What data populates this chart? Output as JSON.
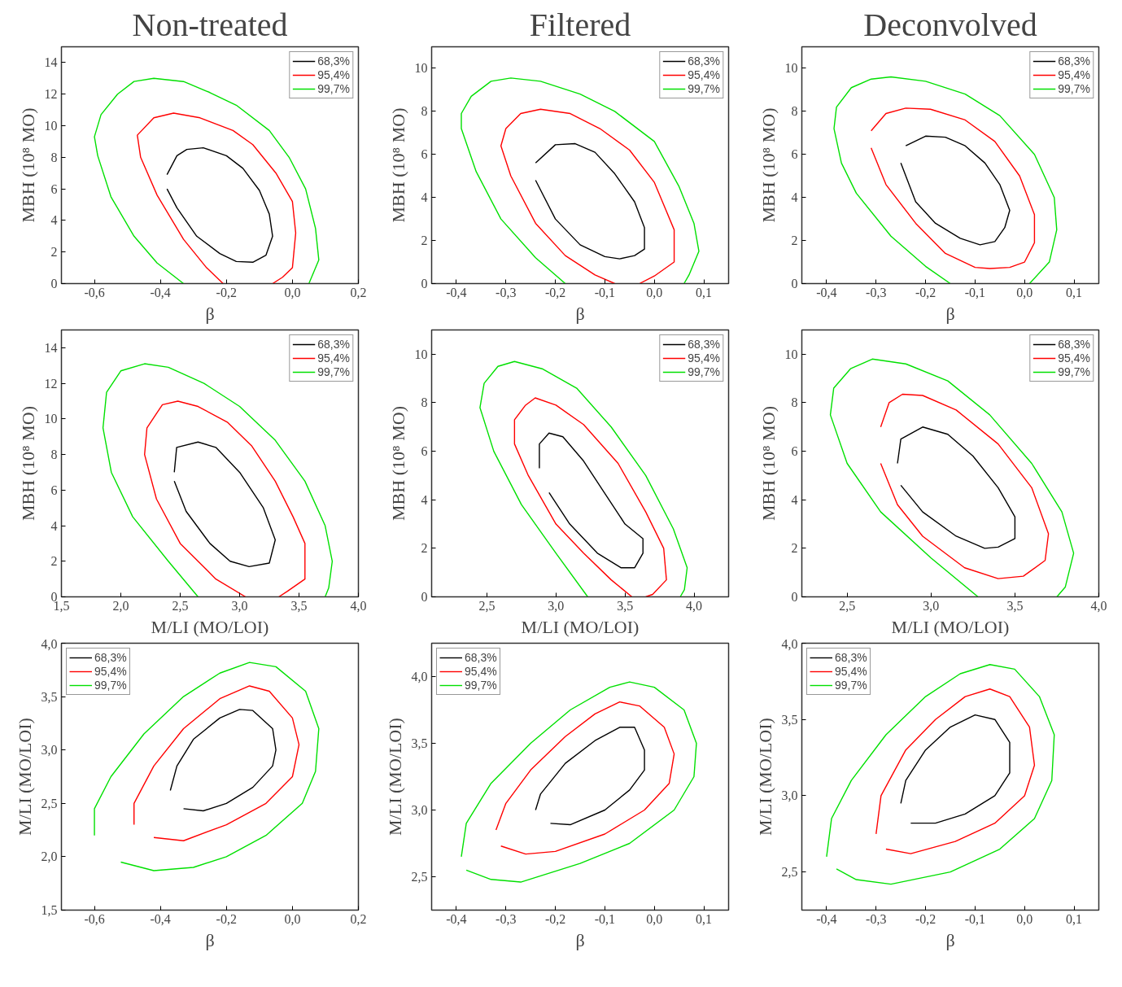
{
  "chart_data": [
    {
      "type": "line",
      "title": "Non-treated",
      "xlabel": "β",
      "ylabel": "MBH (10⁸ MO)",
      "xlim": [
        -0.7,
        0.2
      ],
      "ylim": [
        0,
        15
      ],
      "xticks": [
        {
          "value": -0.6,
          "label": "-0,6"
        },
        {
          "value": -0.4,
          "label": "-0,4"
        },
        {
          "value": -0.2,
          "label": "-0,2"
        },
        {
          "value": 0.0,
          "label": "0,0"
        },
        {
          "value": 0.2,
          "label": "0,2"
        }
      ],
      "yticks": [
        0,
        2,
        4,
        6,
        8,
        10,
        12,
        14
      ],
      "grid": false,
      "legend": "top right",
      "marker": "none",
      "line_style": "solid",
      "series": [
        {
          "name": "68,3%",
          "color": "#000000",
          "x": [
            -0.38,
            -0.35,
            -0.32,
            -0.27,
            -0.2,
            -0.15,
            -0.1,
            -0.07,
            -0.06,
            -0.08,
            -0.12,
            -0.17,
            -0.22,
            -0.29,
            -0.35,
            -0.38,
            -0.38
          ],
          "values": [
            6.9,
            8.1,
            8.5,
            8.6,
            8.1,
            7.3,
            5.9,
            4.4,
            3.0,
            1.8,
            1.35,
            1.4,
            1.9,
            3.0,
            4.8,
            6.0,
            6.9
          ]
        },
        {
          "name": "95,4%",
          "color": "#ff0000",
          "x": [
            -0.21,
            -0.26,
            -0.33,
            -0.41,
            -0.46,
            -0.47,
            -0.42,
            -0.36,
            -0.28,
            -0.18,
            -0.12,
            -0.05,
            0.0,
            0.01,
            0.0,
            -0.03,
            -0.06
          ],
          "values": [
            0,
            1.0,
            2.8,
            5.6,
            8.0,
            9.4,
            10.5,
            10.8,
            10.5,
            9.7,
            8.8,
            7.0,
            5.2,
            3.2,
            1.0,
            0.4,
            0
          ]
        },
        {
          "name": "99,7%",
          "color": "#00e000",
          "x": [
            -0.33,
            -0.41,
            -0.48,
            -0.55,
            -0.59,
            -0.6,
            -0.58,
            -0.53,
            -0.48,
            -0.42,
            -0.33,
            -0.25,
            -0.17,
            -0.07,
            -0.01,
            0.04,
            0.07,
            0.08,
            0.05
          ],
          "values": [
            0,
            1.3,
            3.0,
            5.5,
            8.1,
            9.3,
            10.7,
            12.0,
            12.8,
            13.0,
            12.8,
            12.1,
            11.3,
            9.7,
            8.0,
            6.0,
            3.5,
            1.5,
            0
          ]
        }
      ]
    },
    {
      "type": "line",
      "title": "Filtered",
      "xlabel": "β",
      "ylabel": "MBH (10⁸ MO)",
      "xlim": [
        -0.45,
        0.15
      ],
      "ylim": [
        0,
        11
      ],
      "xticks": [
        {
          "value": -0.4,
          "label": "-0,4"
        },
        {
          "value": -0.3,
          "label": "-0,3"
        },
        {
          "value": -0.2,
          "label": "-0,2"
        },
        {
          "value": -0.1,
          "label": "-0,1"
        },
        {
          "value": 0.0,
          "label": "0,0"
        },
        {
          "value": 0.1,
          "label": "0,1"
        }
      ],
      "yticks": [
        0,
        2,
        4,
        6,
        8,
        10
      ],
      "grid": false,
      "legend": "top right",
      "marker": "none",
      "line_style": "solid",
      "series": [
        {
          "name": "68,3%",
          "color": "#000000",
          "x": [
            -0.24,
            -0.2,
            -0.16,
            -0.12,
            -0.08,
            -0.04,
            -0.02,
            -0.02,
            -0.04,
            -0.07,
            -0.1,
            -0.15,
            -0.2,
            -0.24,
            -0.24
          ],
          "values": [
            5.6,
            6.45,
            6.5,
            6.1,
            5.1,
            3.8,
            2.6,
            1.6,
            1.3,
            1.15,
            1.25,
            1.8,
            3.0,
            4.8,
            5.6
          ]
        },
        {
          "name": "95,4%",
          "color": "#ff0000",
          "x": [
            -0.08,
            -0.12,
            -0.18,
            -0.24,
            -0.29,
            -0.31,
            -0.3,
            -0.27,
            -0.23,
            -0.17,
            -0.11,
            -0.05,
            0.0,
            0.04,
            0.04,
            0.0,
            -0.03
          ],
          "values": [
            0,
            0.4,
            1.3,
            2.8,
            5.0,
            6.4,
            7.2,
            7.9,
            8.1,
            7.9,
            7.2,
            6.2,
            4.7,
            2.5,
            1.0,
            0.35,
            0
          ]
        },
        {
          "name": "99,7%",
          "color": "#00e000",
          "x": [
            -0.18,
            -0.24,
            -0.31,
            -0.36,
            -0.39,
            -0.39,
            -0.37,
            -0.33,
            -0.29,
            -0.23,
            -0.15,
            -0.08,
            0.0,
            0.05,
            0.08,
            0.09,
            0.07,
            0.06
          ],
          "values": [
            0,
            1.2,
            3.0,
            5.2,
            7.2,
            7.9,
            8.7,
            9.4,
            9.55,
            9.4,
            8.8,
            8.0,
            6.6,
            4.5,
            2.8,
            1.5,
            0.4,
            0
          ]
        }
      ]
    },
    {
      "type": "line",
      "title": "Deconvolved",
      "xlabel": "β",
      "ylabel": "MBH (10⁸ MO)",
      "xlim": [
        -0.45,
        0.15
      ],
      "ylim": [
        0,
        11
      ],
      "xticks": [
        {
          "value": -0.4,
          "label": "-0,4"
        },
        {
          "value": -0.3,
          "label": "-0,3"
        },
        {
          "value": -0.2,
          "label": "-0,2"
        },
        {
          "value": -0.1,
          "label": "-0,1"
        },
        {
          "value": 0.0,
          "label": "0,0"
        },
        {
          "value": 0.1,
          "label": "0,1"
        }
      ],
      "yticks": [
        0,
        2,
        4,
        6,
        8,
        10
      ],
      "grid": false,
      "legend": "top right",
      "marker": "none",
      "line_style": "solid",
      "series": [
        {
          "name": "68,3%",
          "color": "#000000",
          "x": [
            -0.24,
            -0.2,
            -0.16,
            -0.12,
            -0.08,
            -0.05,
            -0.03,
            -0.04,
            -0.06,
            -0.09,
            -0.13,
            -0.18,
            -0.22,
            -0.25,
            -0.24
          ],
          "values": [
            6.4,
            6.85,
            6.8,
            6.4,
            5.6,
            4.6,
            3.4,
            2.6,
            1.95,
            1.8,
            2.1,
            2.8,
            3.8,
            5.6,
            6.4
          ]
        },
        {
          "name": "95,4%",
          "color": "#ff0000",
          "x": [
            -0.31,
            -0.28,
            -0.24,
            -0.19,
            -0.12,
            -0.06,
            -0.01,
            0.02,
            0.02,
            0.0,
            -0.03,
            -0.07,
            -0.1,
            -0.16,
            -0.22,
            -0.28,
            -0.31,
            -0.31
          ],
          "values": [
            7.1,
            7.9,
            8.15,
            8.1,
            7.6,
            6.6,
            5.0,
            3.2,
            1.9,
            1.0,
            0.75,
            0.7,
            0.75,
            1.4,
            2.8,
            4.6,
            6.3,
            7.1
          ]
        },
        {
          "name": "99,7%",
          "color": "#00e000",
          "x": [
            -0.15,
            -0.2,
            -0.27,
            -0.34,
            -0.37,
            -0.385,
            -0.38,
            -0.35,
            -0.31,
            -0.27,
            -0.2,
            -0.12,
            -0.05,
            0.02,
            0.06,
            0.065,
            0.05,
            0.01
          ],
          "values": [
            0,
            0.8,
            2.2,
            4.2,
            5.6,
            7.2,
            8.2,
            9.1,
            9.5,
            9.6,
            9.4,
            8.8,
            7.8,
            6.0,
            4.0,
            2.5,
            1.0,
            0
          ]
        }
      ]
    },
    {
      "type": "line",
      "xlabel": "M/LI (MO/LOI)",
      "ylabel": "MBH (10⁸ MO)",
      "xlim": [
        1.5,
        4.0
      ],
      "ylim": [
        0,
        15
      ],
      "xticks": [
        {
          "value": 1.5,
          "label": "1,5"
        },
        {
          "value": 2.0,
          "label": "2,0"
        },
        {
          "value": 2.5,
          "label": "2,5"
        },
        {
          "value": 3.0,
          "label": "3,0"
        },
        {
          "value": 3.5,
          "label": "3,5"
        },
        {
          "value": 4.0,
          "label": "4,0"
        }
      ],
      "yticks": [
        0,
        2,
        4,
        6,
        8,
        10,
        12,
        14
      ],
      "grid": false,
      "legend": "top right",
      "marker": "none",
      "line_style": "solid",
      "series": [
        {
          "name": "68,3%",
          "color": "#000000",
          "x": [
            2.45,
            2.47,
            2.65,
            2.8,
            3.0,
            3.2,
            3.3,
            3.25,
            3.08,
            2.92,
            2.75,
            2.55,
            2.45,
            2.45
          ],
          "values": [
            7.0,
            8.4,
            8.7,
            8.4,
            7.0,
            5.0,
            3.2,
            1.9,
            1.7,
            2.0,
            3.0,
            4.8,
            6.5,
            7.0
          ]
        },
        {
          "name": "95,4%",
          "color": "#ff0000",
          "x": [
            3.05,
            2.8,
            2.5,
            2.3,
            2.2,
            2.22,
            2.35,
            2.48,
            2.65,
            2.9,
            3.1,
            3.3,
            3.45,
            3.55,
            3.55,
            3.4,
            3.33
          ],
          "values": [
            0,
            1.0,
            3.0,
            5.5,
            8.0,
            9.5,
            10.8,
            11.0,
            10.7,
            9.8,
            8.5,
            6.5,
            4.5,
            3.0,
            1.0,
            0.3,
            0
          ]
        },
        {
          "name": "99,7%",
          "color": "#00e000",
          "x": [
            2.65,
            2.4,
            2.1,
            1.92,
            1.85,
            1.88,
            2.0,
            2.2,
            2.4,
            2.7,
            3.0,
            3.3,
            3.55,
            3.72,
            3.78,
            3.75,
            3.72
          ],
          "values": [
            0,
            2.0,
            4.5,
            7.0,
            9.5,
            11.5,
            12.7,
            13.1,
            12.9,
            12.0,
            10.7,
            8.8,
            6.5,
            4.0,
            2.0,
            0.5,
            0
          ]
        }
      ]
    },
    {
      "type": "line",
      "xlabel": "M/LI (MO/LOI)",
      "ylabel": "MBH (10⁸ MO)",
      "xlim": [
        2.1,
        4.25
      ],
      "ylim": [
        0,
        11
      ],
      "xticks": [
        {
          "value": 2.5,
          "label": "2,5"
        },
        {
          "value": 3.0,
          "label": "3,0"
        },
        {
          "value": 3.5,
          "label": "3,5"
        },
        {
          "value": 4.0,
          "label": "4,0"
        }
      ],
      "yticks": [
        0,
        2,
        4,
        6,
        8,
        10
      ],
      "grid": false,
      "legend": "top right",
      "marker": "none",
      "line_style": "solid",
      "series": [
        {
          "name": "68,3%",
          "color": "#000000",
          "x": [
            2.88,
            2.88,
            2.95,
            3.05,
            3.2,
            3.35,
            3.5,
            3.63,
            3.63,
            3.57,
            3.47,
            3.3,
            3.1,
            2.95,
            2.88
          ],
          "values": [
            5.3,
            6.3,
            6.75,
            6.6,
            5.6,
            4.3,
            3.0,
            2.4,
            1.8,
            1.2,
            1.2,
            1.8,
            3.0,
            4.3,
            5.3
          ]
        },
        {
          "name": "95,4%",
          "color": "#ff0000",
          "x": [
            3.55,
            3.4,
            3.2,
            3.0,
            2.8,
            2.7,
            2.7,
            2.78,
            2.85,
            3.0,
            3.2,
            3.45,
            3.65,
            3.78,
            3.8,
            3.7,
            3.65
          ],
          "values": [
            0,
            0.7,
            1.8,
            3.0,
            5.0,
            6.3,
            7.3,
            7.9,
            8.2,
            7.9,
            7.1,
            5.5,
            3.5,
            2.0,
            0.7,
            0.1,
            0
          ]
        },
        {
          "name": "99,7%",
          "color": "#00e000",
          "x": [
            3.23,
            3.0,
            2.75,
            2.55,
            2.45,
            2.48,
            2.58,
            2.7,
            2.9,
            3.15,
            3.4,
            3.65,
            3.85,
            3.95,
            3.93,
            3.9
          ],
          "values": [
            0,
            1.8,
            3.8,
            6.0,
            7.8,
            8.8,
            9.5,
            9.7,
            9.4,
            8.6,
            7.0,
            5.0,
            2.8,
            1.2,
            0.3,
            0
          ]
        }
      ]
    },
    {
      "type": "line",
      "xlabel": "M/LI (MO/LOI)",
      "ylabel": "MBH (10⁸ MO)",
      "xlim": [
        2.23,
        4.0
      ],
      "ylim": [
        0,
        11
      ],
      "xticks": [
        {
          "value": 2.5,
          "label": "2,5"
        },
        {
          "value": 3.0,
          "label": "3,0"
        },
        {
          "value": 3.5,
          "label": "3,5"
        },
        {
          "value": 4.0,
          "label": "4,0"
        }
      ],
      "yticks": [
        0,
        2,
        4,
        6,
        8,
        10
      ],
      "grid": false,
      "legend": "top right",
      "marker": "none",
      "line_style": "solid",
      "series": [
        {
          "name": "68,3%",
          "color": "#000000",
          "x": [
            2.8,
            2.82,
            2.95,
            3.1,
            3.25,
            3.4,
            3.5,
            3.5,
            3.4,
            3.32,
            3.15,
            2.95,
            2.82,
            2.8
          ],
          "values": [
            5.5,
            6.5,
            7.0,
            6.7,
            5.8,
            4.5,
            3.3,
            2.4,
            2.05,
            2.0,
            2.5,
            3.5,
            4.6,
            5.5
          ]
        },
        {
          "name": "95,4%",
          "color": "#ff0000",
          "x": [
            2.7,
            2.75,
            2.83,
            2.95,
            3.15,
            3.4,
            3.6,
            3.7,
            3.68,
            3.55,
            3.4,
            3.2,
            2.95,
            2.8,
            2.7,
            2.7
          ],
          "values": [
            7.0,
            8.0,
            8.35,
            8.3,
            7.7,
            6.3,
            4.5,
            2.6,
            1.5,
            0.85,
            0.75,
            1.2,
            2.5,
            3.8,
            5.5,
            7.0
          ]
        },
        {
          "name": "99,7%",
          "color": "#00e000",
          "x": [
            3.28,
            3.0,
            2.7,
            2.5,
            2.4,
            2.42,
            2.52,
            2.65,
            2.85,
            3.1,
            3.35,
            3.6,
            3.78,
            3.85,
            3.8,
            3.75
          ],
          "values": [
            0,
            1.6,
            3.5,
            5.5,
            7.5,
            8.6,
            9.4,
            9.8,
            9.6,
            8.9,
            7.5,
            5.5,
            3.5,
            1.8,
            0.4,
            0
          ]
        }
      ]
    },
    {
      "type": "line",
      "xlabel": "β",
      "ylabel": "M/LI (MO/LOI)",
      "xlim": [
        -0.7,
        0.2
      ],
      "ylim": [
        1.5,
        4.0
      ],
      "xticks": [
        {
          "value": -0.6,
          "label": "-0,6"
        },
        {
          "value": -0.4,
          "label": "-0,4"
        },
        {
          "value": -0.2,
          "label": "-0,2"
        },
        {
          "value": 0.0,
          "label": "0,0"
        },
        {
          "value": 0.2,
          "label": "0,2"
        }
      ],
      "yticks": [
        {
          "value": 1.5,
          "label": "1,5"
        },
        {
          "value": 2.0,
          "label": "2,0"
        },
        {
          "value": 2.5,
          "label": "2,5"
        },
        {
          "value": 3.0,
          "label": "3,0"
        },
        {
          "value": 3.5,
          "label": "3,5"
        },
        {
          "value": 4.0,
          "label": "4,0"
        }
      ],
      "grid": false,
      "legend": "top left",
      "marker": "none",
      "line_style": "solid",
      "series": [
        {
          "name": "68,3%",
          "color": "#000000",
          "x": [
            -0.37,
            -0.35,
            -0.3,
            -0.22,
            -0.16,
            -0.12,
            -0.06,
            -0.05,
            -0.06,
            -0.12,
            -0.2,
            -0.27,
            -0.33,
            -0.37
          ],
          "values": [
            2.62,
            2.85,
            3.1,
            3.3,
            3.38,
            3.37,
            3.2,
            3.0,
            2.85,
            2.65,
            2.5,
            2.43,
            2.45,
            2.62
          ]
        },
        {
          "name": "95,4%",
          "color": "#ff0000",
          "x": [
            -0.48,
            -0.48,
            -0.42,
            -0.33,
            -0.22,
            -0.13,
            -0.07,
            0.0,
            0.02,
            0.0,
            -0.08,
            -0.2,
            -0.33,
            -0.42,
            -0.48
          ],
          "values": [
            2.3,
            2.5,
            2.85,
            3.2,
            3.48,
            3.6,
            3.55,
            3.3,
            3.05,
            2.75,
            2.5,
            2.3,
            2.15,
            2.18,
            2.3
          ]
        },
        {
          "name": "99,7%",
          "color": "#00e000",
          "x": [
            -0.6,
            -0.6,
            -0.55,
            -0.45,
            -0.33,
            -0.22,
            -0.13,
            -0.05,
            0.04,
            0.08,
            0.07,
            0.03,
            -0.08,
            -0.2,
            -0.3,
            -0.42,
            -0.52,
            -0.6
          ],
          "values": [
            2.2,
            2.45,
            2.75,
            3.15,
            3.5,
            3.72,
            3.82,
            3.78,
            3.55,
            3.2,
            2.8,
            2.5,
            2.2,
            2.0,
            1.9,
            1.87,
            1.95,
            2.2
          ]
        }
      ]
    },
    {
      "type": "line",
      "xlabel": "β",
      "ylabel": "M/LI (MO/LOI)",
      "xlim": [
        -0.45,
        0.15
      ],
      "ylim": [
        2.25,
        4.25
      ],
      "xticks": [
        {
          "value": -0.4,
          "label": "-0,4"
        },
        {
          "value": -0.3,
          "label": "-0,3"
        },
        {
          "value": -0.2,
          "label": "-0,2"
        },
        {
          "value": -0.1,
          "label": "-0,1"
        },
        {
          "value": 0.0,
          "label": "0,0"
        },
        {
          "value": 0.1,
          "label": "0,1"
        }
      ],
      "yticks": [
        {
          "value": 2.5,
          "label": "2,5"
        },
        {
          "value": 3.0,
          "label": "3,0"
        },
        {
          "value": 3.5,
          "label": "3,5"
        },
        {
          "value": 4.0,
          "label": "4,0"
        }
      ],
      "grid": false,
      "legend": "top left",
      "marker": "none",
      "line_style": "solid",
      "series": [
        {
          "name": "68,3%",
          "color": "#000000",
          "x": [
            -0.24,
            -0.23,
            -0.18,
            -0.12,
            -0.07,
            -0.04,
            -0.02,
            -0.02,
            -0.05,
            -0.1,
            -0.17,
            -0.21,
            -0.24
          ],
          "values": [
            3.0,
            3.12,
            3.35,
            3.52,
            3.62,
            3.62,
            3.45,
            3.3,
            3.15,
            3.0,
            2.89,
            2.9,
            3.0
          ]
        },
        {
          "name": "95,4%",
          "color": "#ff0000",
          "x": [
            -0.32,
            -0.3,
            -0.25,
            -0.18,
            -0.12,
            -0.07,
            -0.03,
            0.02,
            0.04,
            0.03,
            -0.02,
            -0.1,
            -0.2,
            -0.26,
            -0.31,
            -0.32
          ],
          "values": [
            2.85,
            3.05,
            3.3,
            3.55,
            3.72,
            3.81,
            3.78,
            3.62,
            3.42,
            3.2,
            3.0,
            2.82,
            2.69,
            2.67,
            2.73,
            2.85
          ]
        },
        {
          "name": "99,7%",
          "color": "#00e000",
          "x": [
            -0.39,
            -0.38,
            -0.33,
            -0.25,
            -0.17,
            -0.09,
            -0.05,
            0.0,
            0.06,
            0.085,
            0.08,
            0.04,
            -0.05,
            -0.15,
            -0.27,
            -0.33,
            -0.38,
            -0.39
          ],
          "values": [
            2.65,
            2.9,
            3.2,
            3.5,
            3.75,
            3.92,
            3.96,
            3.92,
            3.75,
            3.5,
            3.25,
            3.0,
            2.75,
            2.6,
            2.46,
            2.48,
            2.55,
            2.65
          ]
        }
      ]
    },
    {
      "type": "line",
      "xlabel": "β",
      "ylabel": "M/LI (MO/LOI)",
      "xlim": [
        -0.45,
        0.15
      ],
      "ylim": [
        2.25,
        4.0
      ],
      "xticks": [
        {
          "value": -0.4,
          "label": "-0,4"
        },
        {
          "value": -0.3,
          "label": "-0,3"
        },
        {
          "value": -0.2,
          "label": "-0,2"
        },
        {
          "value": -0.1,
          "label": "-0,1"
        },
        {
          "value": 0.0,
          "label": "0,0"
        },
        {
          "value": 0.1,
          "label": "0,1"
        }
      ],
      "yticks": [
        {
          "value": 2.5,
          "label": "2,5"
        },
        {
          "value": 3.0,
          "label": "3,0"
        },
        {
          "value": 3.5,
          "label": "3,5"
        },
        {
          "value": 4.0,
          "label": "4,0"
        }
      ],
      "grid": false,
      "legend": "top left",
      "marker": "none",
      "line_style": "solid",
      "series": [
        {
          "name": "68,3%",
          "color": "#000000",
          "x": [
            -0.25,
            -0.24,
            -0.2,
            -0.15,
            -0.1,
            -0.06,
            -0.03,
            -0.03,
            -0.06,
            -0.12,
            -0.18,
            -0.23,
            -0.25
          ],
          "values": [
            2.95,
            3.1,
            3.3,
            3.45,
            3.53,
            3.5,
            3.35,
            3.15,
            3.0,
            2.88,
            2.82,
            2.82,
            2.95
          ]
        },
        {
          "name": "95,4%",
          "color": "#ff0000",
          "x": [
            -0.3,
            -0.29,
            -0.24,
            -0.18,
            -0.12,
            -0.07,
            -0.03,
            0.01,
            0.02,
            0.0,
            -0.06,
            -0.14,
            -0.23,
            -0.28,
            -0.3
          ],
          "values": [
            2.75,
            3.0,
            3.3,
            3.5,
            3.65,
            3.7,
            3.65,
            3.45,
            3.2,
            3.0,
            2.82,
            2.7,
            2.62,
            2.65,
            2.75
          ]
        },
        {
          "name": "99,7%",
          "color": "#00e000",
          "x": [
            -0.4,
            -0.39,
            -0.35,
            -0.28,
            -0.2,
            -0.13,
            -0.07,
            -0.02,
            0.03,
            0.06,
            0.055,
            0.02,
            -0.05,
            -0.15,
            -0.27,
            -0.34,
            -0.38,
            -0.4
          ],
          "values": [
            2.6,
            2.85,
            3.1,
            3.4,
            3.65,
            3.8,
            3.86,
            3.83,
            3.65,
            3.4,
            3.1,
            2.85,
            2.65,
            2.5,
            2.42,
            2.45,
            2.52,
            2.6
          ]
        }
      ]
    }
  ]
}
